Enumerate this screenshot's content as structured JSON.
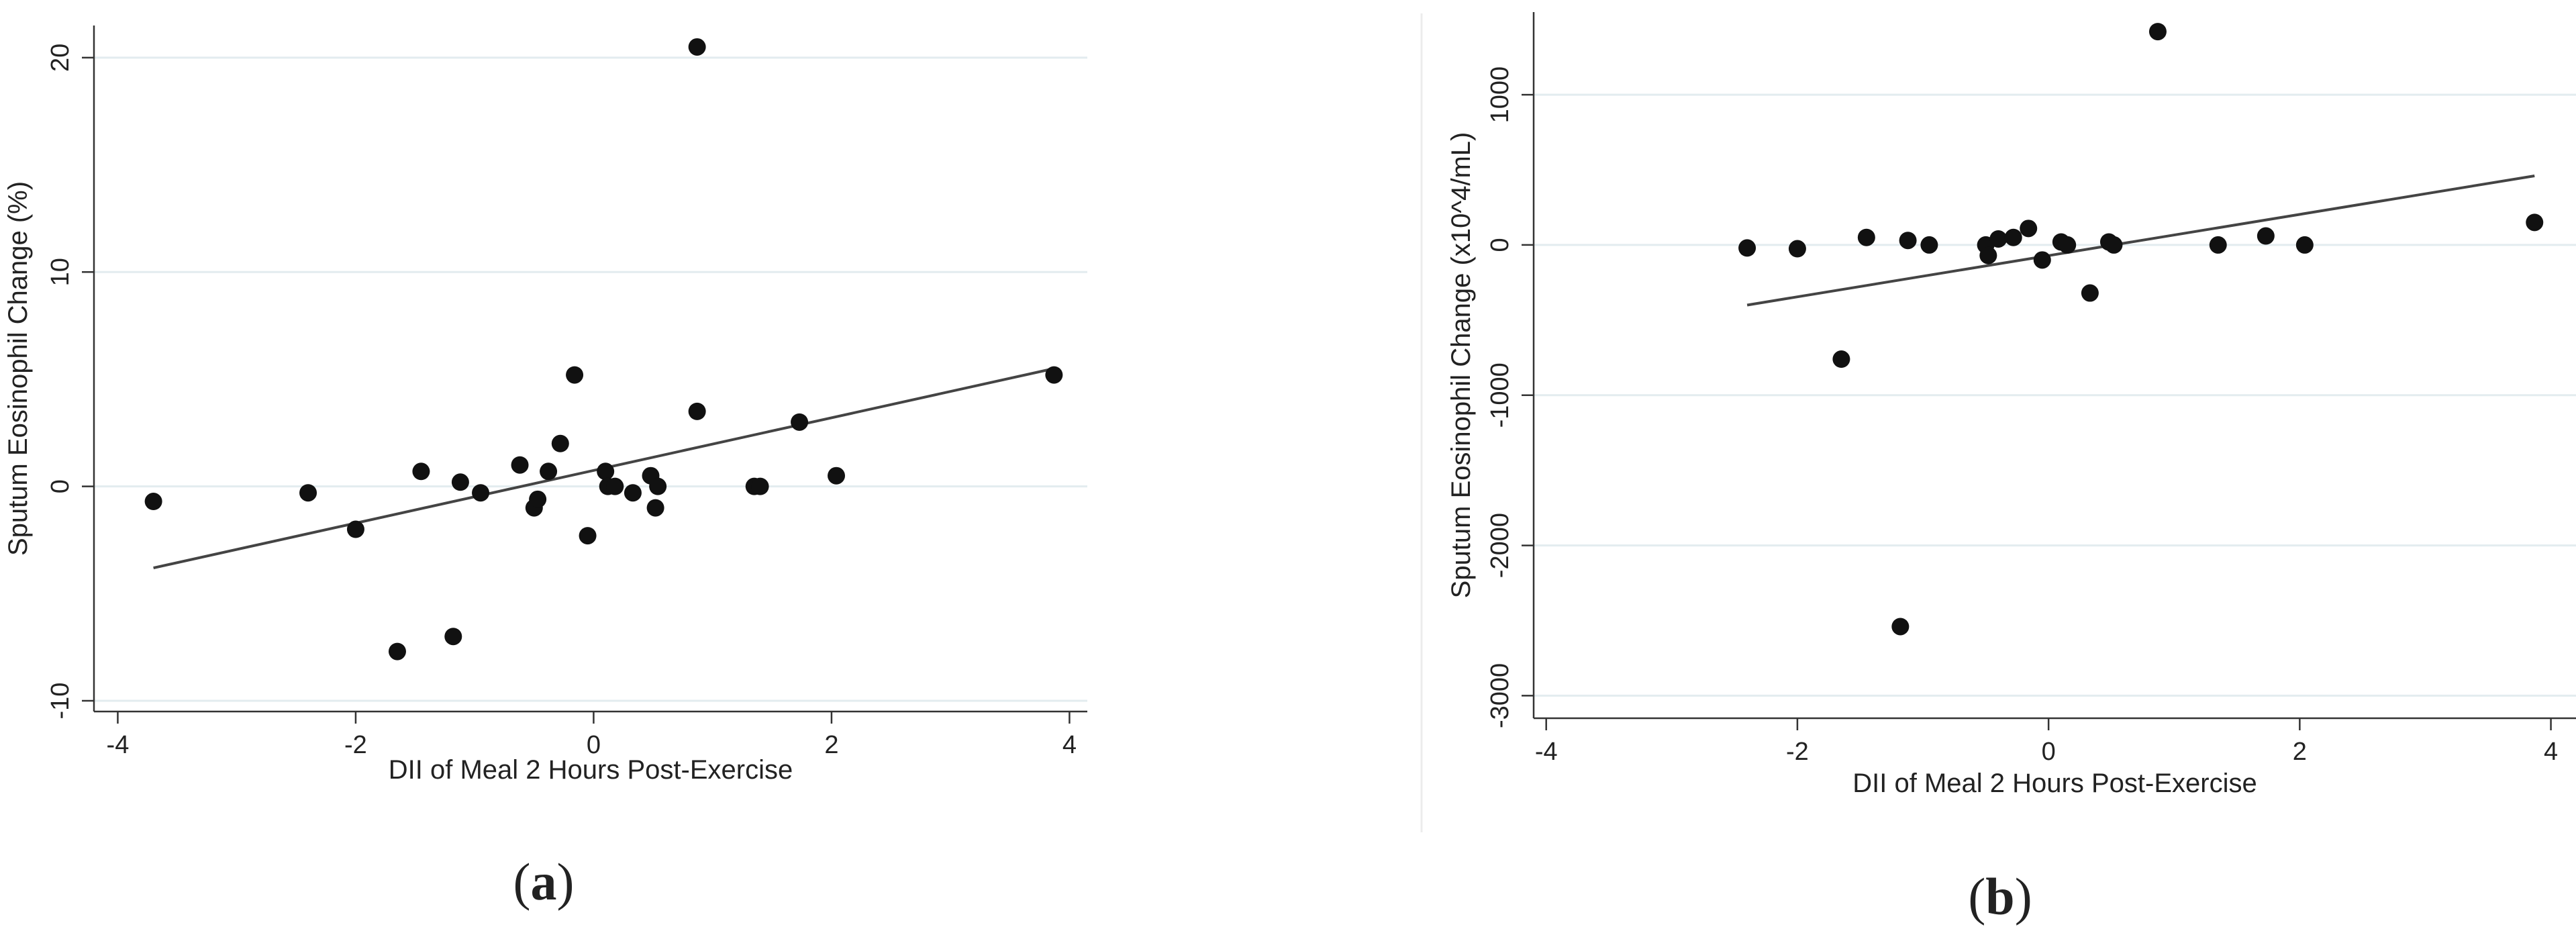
{
  "chart_data": [
    {
      "type": "scatter",
      "panel_label": "a",
      "xlabel": "DII of Meal 2 Hours Post-Exercise",
      "ylabel": "Sputum Eosinophil Change (%)",
      "xlim": [
        -4.2,
        4.15
      ],
      "ylim": [
        -10.5,
        21.5
      ],
      "xticks": [
        -4,
        -2,
        0,
        2,
        4
      ],
      "yticks": [
        -10,
        0,
        10,
        20
      ],
      "ytick_rotated": true,
      "grid": "horizontal",
      "legend": "none",
      "points": [
        {
          "x": -3.7,
          "y": -0.7
        },
        {
          "x": -2.4,
          "y": -0.3
        },
        {
          "x": -2.0,
          "y": -2.0
        },
        {
          "x": -1.65,
          "y": -7.7
        },
        {
          "x": -1.45,
          "y": 0.7
        },
        {
          "x": -1.18,
          "y": -7.0
        },
        {
          "x": -1.12,
          "y": 0.2
        },
        {
          "x": -0.95,
          "y": -0.3
        },
        {
          "x": -0.62,
          "y": 1.0
        },
        {
          "x": -0.5,
          "y": -1.0
        },
        {
          "x": -0.47,
          "y": -0.6
        },
        {
          "x": -0.38,
          "y": 0.7
        },
        {
          "x": -0.28,
          "y": 2.0
        },
        {
          "x": -0.16,
          "y": 5.2
        },
        {
          "x": -0.05,
          "y": -2.3
        },
        {
          "x": 0.1,
          "y": 0.7
        },
        {
          "x": 0.12,
          "y": 0.0
        },
        {
          "x": 0.18,
          "y": 0.0
        },
        {
          "x": 0.33,
          "y": -0.3
        },
        {
          "x": 0.48,
          "y": 0.5
        },
        {
          "x": 0.52,
          "y": -1.0
        },
        {
          "x": 0.54,
          "y": 0.0
        },
        {
          "x": 0.87,
          "y": 3.5
        },
        {
          "x": 0.87,
          "y": 20.5
        },
        {
          "x": 1.35,
          "y": 0.0
        },
        {
          "x": 1.4,
          "y": 0.0
        },
        {
          "x": 1.73,
          "y": 3.0
        },
        {
          "x": 2.04,
          "y": 0.5
        },
        {
          "x": 3.87,
          "y": 5.2
        }
      ],
      "fit_line": {
        "x": [
          -3.7,
          3.87
        ],
        "y": [
          -3.8,
          5.5
        ]
      }
    },
    {
      "type": "scatter",
      "panel_label": "b",
      "xlabel": "DII of Meal 2 Hours Post-Exercise",
      "ylabel": "Sputum Eosinophil Change (x10^4/mL)",
      "xlim": [
        -4.1,
        4.2
      ],
      "ylim": [
        -3150,
        1550
      ],
      "xticks": [
        -4,
        -2,
        0,
        2,
        4
      ],
      "yticks": [
        -3000,
        -2000,
        -1000,
        0,
        1000
      ],
      "ytick_rotated": true,
      "grid": "horizontal",
      "legend": "none",
      "points": [
        {
          "x": -2.4,
          "y": -20
        },
        {
          "x": -2.0,
          "y": -25
        },
        {
          "x": -1.65,
          "y": -760
        },
        {
          "x": -1.45,
          "y": 50
        },
        {
          "x": -1.18,
          "y": -2540
        },
        {
          "x": -1.12,
          "y": 30
        },
        {
          "x": -0.95,
          "y": 0
        },
        {
          "x": -0.5,
          "y": 0
        },
        {
          "x": -0.48,
          "y": -70
        },
        {
          "x": -0.4,
          "y": 40
        },
        {
          "x": -0.28,
          "y": 50
        },
        {
          "x": -0.16,
          "y": 110
        },
        {
          "x": -0.05,
          "y": -100
        },
        {
          "x": 0.1,
          "y": 20
        },
        {
          "x": 0.15,
          "y": 0
        },
        {
          "x": 0.33,
          "y": -320
        },
        {
          "x": 0.48,
          "y": 20
        },
        {
          "x": 0.52,
          "y": 0
        },
        {
          "x": 0.87,
          "y": 1420
        },
        {
          "x": 1.35,
          "y": 0
        },
        {
          "x": 1.73,
          "y": 60
        },
        {
          "x": 2.04,
          "y": 0
        },
        {
          "x": 3.87,
          "y": 150
        }
      ],
      "fit_line": {
        "x": [
          -2.4,
          3.87
        ],
        "y": [
          -400,
          460
        ]
      }
    }
  ]
}
